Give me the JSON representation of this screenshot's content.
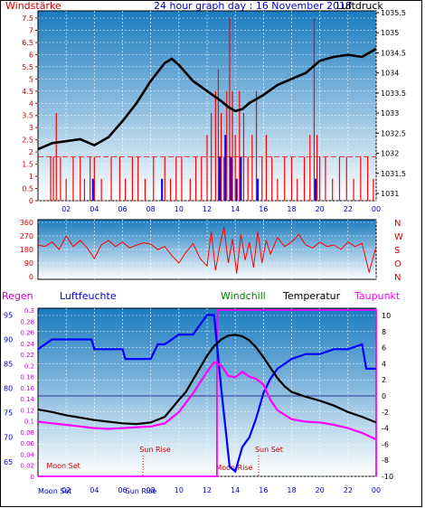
{
  "colors": {
    "panel_top": "#1a7bbf",
    "panel_bottom": "#ffffff",
    "wind": "#ff0000",
    "gust": "#0000ff",
    "pressure": "#000000",
    "humidity": "#0000ff",
    "temperature": "#000000",
    "dewpoint": "#ff00ff",
    "windchill": "#008000",
    "rain": "#ff00ff",
    "label_blue": "#0000cc",
    "label_red": "#cc0000"
  },
  "chart_data": [
    {
      "type": "line",
      "title": "24 hour graph day : 16 November 2018",
      "left_label": "Windstärke",
      "right_label": "Luftdruck",
      "x_tick_labels": [
        "02",
        "04",
        "06",
        "08",
        "10",
        "12",
        "14",
        "16",
        "18",
        "20",
        "22",
        "00"
      ],
      "y_left_ticks": [
        "0",
        "0.5",
        "1",
        "1.5",
        "2",
        "2.5",
        "3",
        "3.5",
        "4",
        "4.5",
        "5",
        "5.5",
        "6",
        "6.5",
        "7",
        "7.5"
      ],
      "y_left_lim": [
        0,
        7.5
      ],
      "y_right_ticks": [
        "1031",
        "1031.5",
        "1032",
        "1032.5",
        "1033",
        "1033.5",
        "1034",
        "1034.5",
        "1035",
        "1035.5"
      ],
      "y_right_lim": [
        1031,
        1035.5
      ],
      "series": [
        {
          "name": "Luftdruck",
          "axis": "right",
          "x": [
            0,
            1,
            2,
            3,
            4,
            5,
            6,
            7,
            8,
            9,
            9.5,
            10,
            11,
            12,
            13,
            13.5,
            14,
            14.5,
            15,
            16,
            17,
            18,
            19,
            20,
            21,
            22,
            23,
            24
          ],
          "values": [
            1032.1,
            1032.25,
            1032.3,
            1032.35,
            1032.2,
            1032.4,
            1032.8,
            1033.25,
            1033.8,
            1034.25,
            1034.35,
            1034.2,
            1033.8,
            1033.55,
            1033.3,
            1033.15,
            1033.05,
            1033.1,
            1033.25,
            1033.45,
            1033.7,
            1033.85,
            1034.0,
            1034.3,
            1034.4,
            1034.45,
            1034.4,
            1034.6
          ]
        },
        {
          "name": "Windstärke",
          "axis": "left",
          "style": "spikes",
          "x": [
            0.9,
            1.1,
            1.3,
            1.6,
            2.0,
            2.5,
            3.0,
            3.3,
            3.7,
            4.0,
            4.5,
            5.2,
            5.8,
            6.2,
            6.7,
            7.1,
            7.6,
            8.2,
            9.0,
            9.4,
            9.8,
            10.2,
            10.8,
            11.2,
            11.6,
            12.0,
            12.3,
            12.6,
            12.8,
            13.0,
            13.2,
            13.4,
            13.6,
            13.8,
            14.0,
            14.3,
            14.6,
            14.9,
            15.2,
            15.5,
            15.9,
            16.2,
            16.6,
            17.0,
            17.5,
            18.0,
            18.4,
            18.9,
            19.3,
            19.6,
            19.8,
            20.0,
            20.4,
            20.9,
            21.4,
            21.9,
            22.4,
            22.9,
            23.4,
            23.8
          ],
          "values": [
            1.8,
            1.8,
            3.6,
            1.8,
            0.9,
            1.8,
            1.8,
            0.9,
            1.8,
            1.8,
            0.9,
            1.8,
            1.8,
            0.9,
            1.8,
            1.8,
            0.9,
            1.8,
            1.8,
            0.9,
            1.8,
            1.8,
            0.9,
            1.8,
            1.8,
            2.7,
            3.6,
            4.5,
            5.4,
            3.6,
            1.8,
            4.5,
            7.5,
            4.5,
            2.7,
            4.5,
            3.6,
            1.8,
            2.7,
            4.5,
            1.8,
            2.7,
            1.8,
            0.9,
            1.8,
            1.8,
            0.9,
            1.8,
            2.7,
            7.5,
            2.7,
            1.8,
            1.8,
            0.9,
            1.8,
            1.8,
            0.9,
            1.8,
            1.8,
            0.9
          ]
        },
        {
          "name": "Böen",
          "axis": "left",
          "style": "spikes",
          "x": [
            3.9,
            8.8,
            12.9,
            13.3,
            13.7,
            14.1,
            14.4,
            15.6,
            19.7
          ],
          "values": [
            0.9,
            0.9,
            1.8,
            2.7,
            1.8,
            0.9,
            1.8,
            0.9,
            0.9
          ]
        }
      ]
    },
    {
      "type": "line",
      "title": "",
      "y_left_ticks": [
        "0",
        "90",
        "180",
        "270",
        "360"
      ],
      "y_left_lim": [
        0,
        360
      ],
      "right_labels": [
        "N",
        "W",
        "S",
        "O",
        "N"
      ],
      "series": [
        {
          "name": "Windrichtung",
          "axis": "left",
          "x": [
            0,
            0.5,
            1,
            1.5,
            2,
            2.5,
            3,
            3.5,
            4,
            4.5,
            5,
            5.5,
            6,
            6.5,
            7,
            7.5,
            8,
            8.5,
            9,
            9.5,
            10,
            10.5,
            11,
            11.5,
            12,
            12.3,
            12.6,
            12.9,
            13.2,
            13.5,
            13.8,
            14.1,
            14.4,
            14.7,
            15,
            15.3,
            15.6,
            15.9,
            16.2,
            16.5,
            17,
            17.5,
            18,
            18.5,
            19,
            19.5,
            20,
            20.5,
            21,
            21.5,
            22,
            22.5,
            23,
            23.5,
            24
          ],
          "values": [
            210,
            200,
            230,
            180,
            270,
            200,
            240,
            190,
            120,
            210,
            240,
            200,
            230,
            190,
            210,
            225,
            215,
            180,
            200,
            140,
            90,
            160,
            220,
            120,
            70,
            300,
            40,
            200,
            330,
            90,
            250,
            20,
            280,
            110,
            230,
            60,
            300,
            90,
            240,
            150,
            260,
            200,
            230,
            280,
            210,
            190,
            230,
            200,
            210,
            180,
            230,
            200,
            220,
            30,
            200
          ]
        }
      ]
    },
    {
      "type": "line",
      "title": "",
      "legend": [
        "Regen",
        "Luftfeuchte",
        "Windchill",
        "Temperatur",
        "Taupunkt"
      ],
      "x_tick_labels": [
        "02",
        "04",
        "06",
        "08",
        "10",
        "12",
        "14",
        "16",
        "18",
        "20",
        "22",
        "00"
      ],
      "y_rain_ticks": [
        "0",
        "0.02",
        "0.04",
        "0.06",
        "0.08",
        "0.1",
        "0.12",
        "0.14",
        "0.16",
        "0.18",
        "0.2",
        "0.22",
        "0.24",
        "0.26",
        "0.28",
        "0.3"
      ],
      "y_rain_lim": [
        0,
        0.3
      ],
      "y_humidity_ticks": [
        "65",
        "70",
        "75",
        "80",
        "85",
        "90",
        "95"
      ],
      "y_humidity_lim": [
        62,
        96
      ],
      "y_temp_ticks": [
        "-10",
        "-8",
        "-6",
        "-4",
        "-2",
        "0",
        "2",
        "4",
        "6",
        "8",
        "10"
      ],
      "y_temp_lim": [
        -10,
        10
      ],
      "series": [
        {
          "name": "Temperatur",
          "axis": "temp",
          "x": [
            0,
            1,
            2,
            3,
            4,
            5,
            6,
            7,
            8,
            9,
            10,
            10.5,
            11,
            11.5,
            12,
            12.5,
            13,
            13.5,
            14,
            14.5,
            15,
            15.5,
            16,
            16.5,
            17,
            17.5,
            18,
            19,
            20,
            21,
            22,
            23,
            24
          ],
          "values": [
            -1.7,
            -2.0,
            -2.4,
            -2.7,
            -3.0,
            -3.2,
            -3.4,
            -3.5,
            -3.3,
            -2.6,
            -0.5,
            0.5,
            2.0,
            3.5,
            5.0,
            6.2,
            7.0,
            7.5,
            7.6,
            7.4,
            6.9,
            6.0,
            4.8,
            3.5,
            2.2,
            1.2,
            0.5,
            -0.1,
            -0.6,
            -1.2,
            -2.0,
            -2.6,
            -3.3
          ]
        },
        {
          "name": "Taupunkt",
          "axis": "temp",
          "x": [
            0,
            1,
            2,
            3,
            4,
            5,
            6,
            7,
            8,
            9,
            10,
            11,
            12,
            12.5,
            13,
            13.5,
            14,
            14.5,
            15,
            15.5,
            16,
            16.5,
            17,
            18,
            19,
            20,
            21,
            22,
            23,
            24
          ],
          "values": [
            -3.2,
            -3.4,
            -3.6,
            -3.8,
            -4.0,
            -4.1,
            -4.0,
            -3.9,
            -3.8,
            -3.4,
            -2.0,
            0.3,
            3.0,
            4.2,
            3.8,
            2.5,
            2.3,
            3.0,
            2.4,
            2.1,
            1.4,
            -0.5,
            -1.8,
            -2.9,
            -3.2,
            -3.3,
            -3.6,
            -4.0,
            -4.6,
            -5.4
          ]
        },
        {
          "name": "Luftfeuchte",
          "axis": "humidity",
          "x": [
            0,
            0.5,
            1,
            3.8,
            4,
            5,
            6,
            6.2,
            8,
            8.5,
            9,
            9.5,
            10,
            11,
            12,
            12.5,
            13,
            13.3,
            13.6,
            14,
            14.5,
            15,
            15.5,
            16,
            16.5,
            17,
            18,
            19,
            20,
            21,
            22,
            23,
            23.3,
            24
          ],
          "values": [
            88,
            89,
            90,
            90,
            88,
            88,
            88,
            86,
            86,
            89,
            89,
            90,
            91,
            91,
            95,
            95,
            80,
            72,
            64,
            63,
            68,
            70,
            74,
            79,
            82,
            84,
            86,
            87,
            87,
            88,
            88,
            89,
            84,
            84
          ]
        }
      ],
      "annotations": [
        "Moon Set",
        "Sun Rise",
        "Moon Rise",
        "Sun Set",
        "Moon Set",
        "Sun Rise"
      ]
    }
  ]
}
